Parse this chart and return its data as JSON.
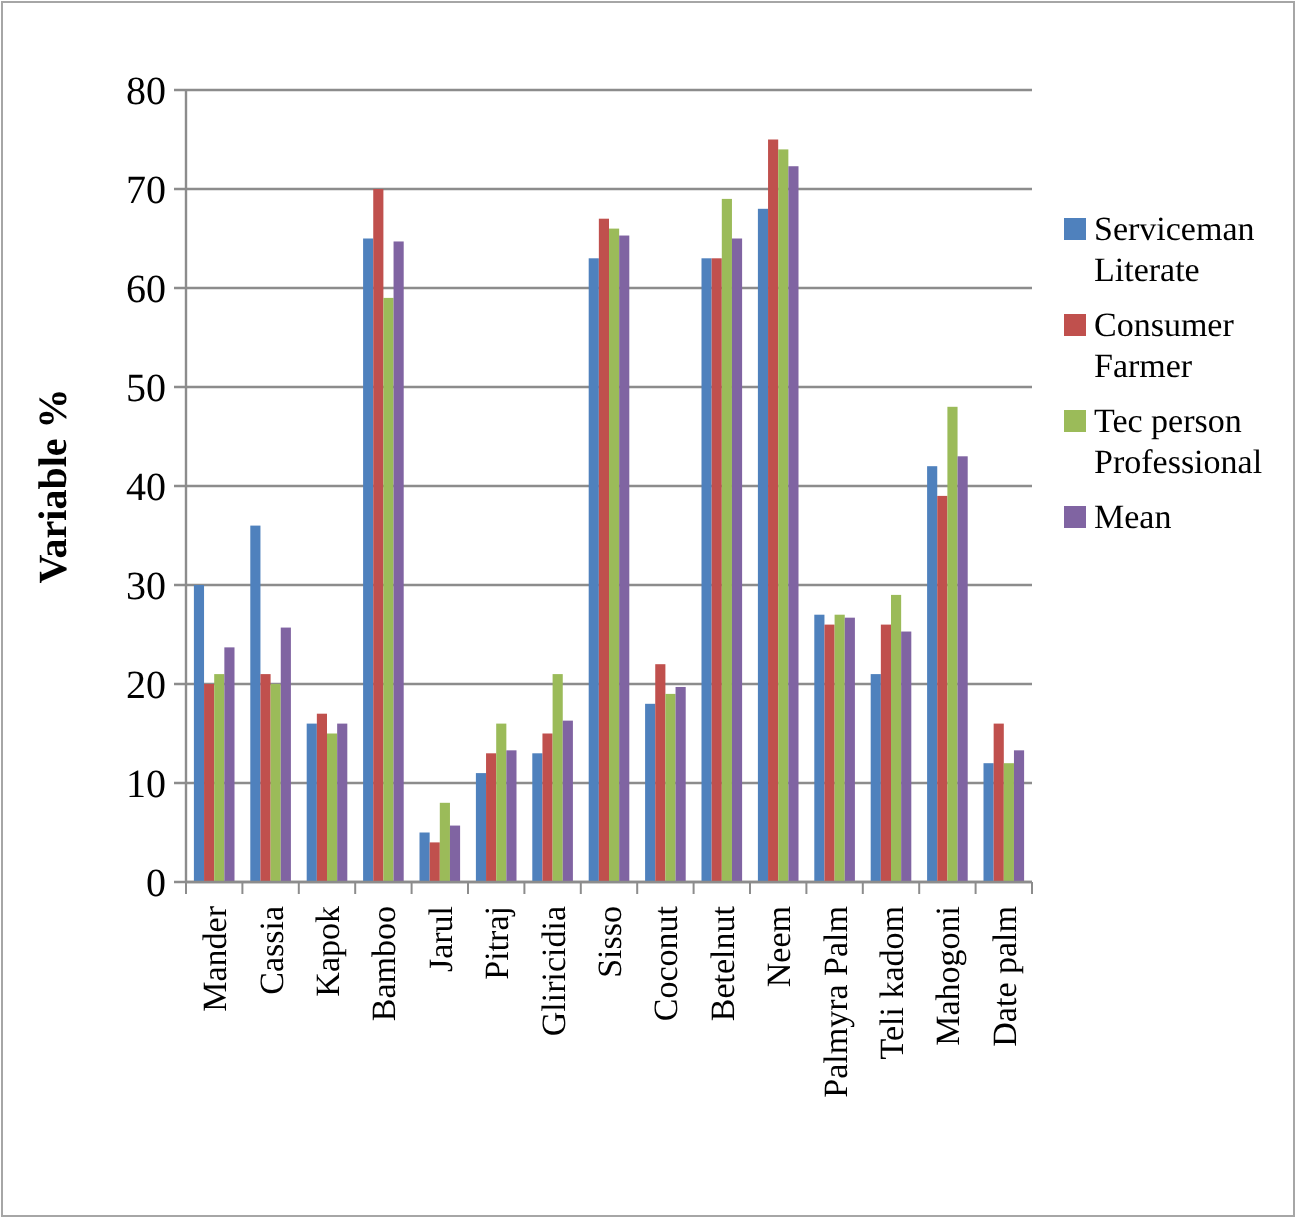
{
  "chart_data": {
    "type": "bar",
    "ylabel": "Variable %",
    "categories": [
      "Mander",
      "Cassia",
      "Kapok",
      "Bamboo",
      "Jarul",
      "Pitraj",
      "Gliricidia",
      "Sisso",
      "Coconut",
      "Betelnut",
      "Neem",
      "Palmyra Palm",
      "Teli kadom",
      "Mahogoni",
      "Date palm"
    ],
    "series": [
      {
        "name": "Serviceman Literate",
        "color": "#4f81bd",
        "values": [
          30,
          36,
          16,
          65,
          5,
          11,
          13,
          63,
          18,
          63,
          68,
          27,
          21,
          42,
          12
        ]
      },
      {
        "name": "Consumer Farmer",
        "color": "#c0504d",
        "values": [
          20,
          21,
          17,
          70,
          4,
          13,
          15,
          67,
          22,
          63,
          75,
          26,
          26,
          39,
          16
        ]
      },
      {
        "name": "Tec person Professional",
        "color": "#9bbb59",
        "values": [
          21,
          20,
          15,
          59,
          8,
          16,
          21,
          66,
          19,
          69,
          74,
          27,
          29,
          48,
          12
        ]
      },
      {
        "name": "Mean",
        "color": "#8064a2",
        "values": [
          23.7,
          25.7,
          16,
          64.7,
          5.7,
          13.3,
          16.3,
          65.3,
          19.7,
          65,
          72.3,
          26.7,
          25.3,
          43,
          13.3
        ]
      }
    ],
    "ylim": [
      0,
      80
    ],
    "yticks": [
      0,
      10,
      20,
      30,
      40,
      50,
      60,
      70,
      80
    ],
    "grid": "y",
    "legend": "right"
  }
}
